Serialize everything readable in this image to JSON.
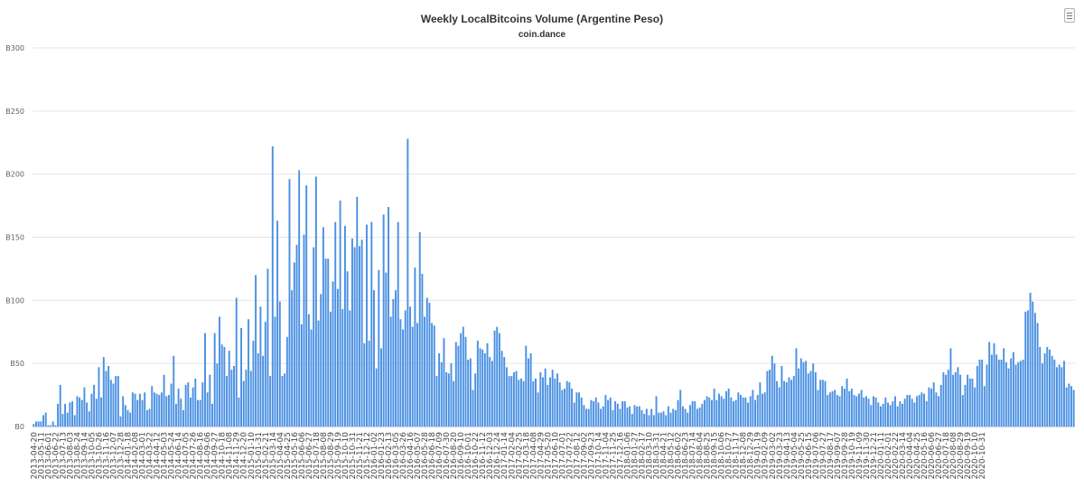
{
  "chart_data": {
    "type": "bar",
    "title": "Weekly LocalBitcoins Volume (Argentine Peso)",
    "subtitle": "coin.dance",
    "xlabel": "",
    "ylabel": "",
    "ylim": [
      0,
      300
    ],
    "y_ticks": [
      "B0",
      "B50",
      "B100",
      "B150",
      "B200",
      "B250",
      "B300"
    ],
    "y_tick_values": [
      0,
      50,
      100,
      150,
      200,
      250,
      300
    ],
    "x_tick_labels": [
      "2013-04-20",
      "2013-05-11",
      "2013-06-01",
      "2013-06-22",
      "2013-07-13",
      "2013-08-03",
      "2013-08-24",
      "2013-09-14",
      "2013-10-05",
      "2013-10-26",
      "2013-11-16",
      "2013-12-07",
      "2013-12-28",
      "2014-01-18",
      "2014-02-08",
      "2014-03-01",
      "2014-03-22",
      "2014-04-12",
      "2014-05-03",
      "2014-05-24",
      "2014-06-14",
      "2014-07-05",
      "2014-07-26",
      "2014-08-16",
      "2014-09-06",
      "2014-09-27",
      "2014-10-18",
      "2014-11-08",
      "2014-11-29",
      "2014-12-20",
      "2015-01-10",
      "2015-01-31",
      "2015-02-21",
      "2015-03-14",
      "2015-04-04",
      "2015-04-25",
      "2015-05-16",
      "2015-06-06",
      "2015-06-27",
      "2015-07-18",
      "2015-08-08",
      "2015-08-29",
      "2015-09-19",
      "2015-10-10",
      "2015-10-31",
      "2015-11-21",
      "2015-12-12",
      "2016-01-02",
      "2016-01-23",
      "2016-02-13",
      "2016-03-05",
      "2016-03-26",
      "2016-04-16",
      "2016-05-07",
      "2016-05-28",
      "2016-06-18",
      "2016-07-09",
      "2016-07-30",
      "2016-08-20",
      "2016-09-10",
      "2016-10-01",
      "2016-10-22",
      "2016-11-12",
      "2016-12-03",
      "2016-12-24",
      "2017-01-14",
      "2017-02-04",
      "2017-02-25",
      "2017-03-18",
      "2017-04-08",
      "2017-04-29",
      "2017-05-20",
      "2017-06-10",
      "2017-07-01",
      "2017-07-22",
      "2017-08-12",
      "2017-09-02",
      "2017-09-23",
      "2017-10-14",
      "2017-11-04",
      "2017-11-25",
      "2017-12-16",
      "2018-01-06",
      "2018-01-27",
      "2018-02-17",
      "2018-03-10",
      "2018-03-31",
      "2018-04-21",
      "2018-05-12",
      "2018-06-02",
      "2018-06-23",
      "2018-07-14",
      "2018-08-04",
      "2018-08-25",
      "2018-09-15",
      "2018-10-06",
      "2018-10-27",
      "2018-11-17",
      "2018-12-08",
      "2018-12-29",
      "2019-01-19",
      "2019-02-09",
      "2019-03-02",
      "2019-03-23",
      "2019-04-13",
      "2019-05-04",
      "2019-05-25",
      "2019-06-15",
      "2019-07-06",
      "2019-07-27",
      "2019-08-17",
      "2019-09-07",
      "2019-09-28",
      "2019-10-19",
      "2019-11-09",
      "2019-11-30",
      "2019-12-21",
      "2020-01-11",
      "2020-02-01",
      "2020-02-22",
      "2020-03-14",
      "2020-04-04",
      "2020-04-25",
      "2020-05-16",
      "2020-06-06",
      "2020-06-27",
      "2020-07-18",
      "2020-08-08",
      "2020-08-29",
      "2020-09-19",
      "2020-10-10",
      "2020-10-31"
    ],
    "x_start": "2013-04-20",
    "x_end": "2020-11-14",
    "week_step_days": 7,
    "grid": true,
    "legend": "none",
    "series": [
      {
        "color": "#4a90e2",
        "values": [
          2,
          4,
          4,
          4,
          9,
          11,
          1,
          1,
          4,
          1,
          18,
          33,
          10,
          18,
          11,
          19,
          20,
          9,
          24,
          23,
          21,
          31,
          19,
          12,
          26,
          33,
          22,
          47,
          23,
          55,
          44,
          48,
          37,
          34,
          40,
          40,
          8,
          24,
          17,
          13,
          11,
          27,
          26,
          21,
          26,
          21,
          27,
          13,
          14,
          32,
          27,
          26,
          25,
          27,
          41,
          24,
          25,
          34,
          56,
          18,
          30,
          22,
          13,
          33,
          35,
          23,
          31,
          38,
          21,
          21,
          35,
          74,
          27,
          41,
          18,
          74,
          50,
          87,
          65,
          63,
          40,
          60,
          45,
          48,
          102,
          23,
          78,
          36,
          45,
          85,
          44,
          68,
          120,
          58,
          95,
          56,
          83,
          125,
          40,
          222,
          87,
          163,
          99,
          40,
          42,
          71,
          196,
          108,
          130,
          144,
          203,
          81,
          152,
          191,
          89,
          77,
          142,
          198,
          84,
          105,
          158,
          133,
          133,
          91,
          115,
          162,
          109,
          179,
          93,
          159,
          123,
          92,
          149,
          142,
          182,
          143,
          148,
          66,
          160,
          68,
          162,
          108,
          46,
          124,
          62,
          168,
          122,
          174,
          87,
          101,
          108,
          162,
          85,
          77,
          92,
          228,
          95,
          79,
          126,
          82,
          154,
          121,
          87,
          102,
          98,
          82,
          80,
          40,
          58,
          51,
          70,
          43,
          42,
          50,
          36,
          67,
          64,
          74,
          79,
          71,
          53,
          54,
          29,
          42,
          68,
          62,
          61,
          58,
          66,
          55,
          52,
          76,
          79,
          74,
          60,
          55,
          47,
          40,
          40,
          43,
          44,
          37,
          38,
          36,
          64,
          54,
          58,
          36,
          38,
          27,
          43,
          39,
          46,
          33,
          39,
          45,
          38,
          42,
          35,
          29,
          30,
          36,
          35,
          30,
          19,
          27,
          27,
          23,
          17,
          14,
          14,
          21,
          20,
          23,
          19,
          14,
          16,
          25,
          21,
          23,
          13,
          20,
          18,
          14,
          20,
          20,
          15,
          16,
          10,
          17,
          16,
          16,
          13,
          10,
          14,
          9,
          14,
          9,
          24,
          11,
          11,
          12,
          9,
          16,
          11,
          14,
          13,
          21,
          29,
          16,
          14,
          11,
          17,
          20,
          20,
          14,
          15,
          18,
          21,
          24,
          23,
          21,
          30,
          21,
          26,
          24,
          22,
          28,
          30,
          23,
          20,
          21,
          27,
          25,
          23,
          23,
          19,
          24,
          29,
          21,
          25,
          35,
          26,
          27,
          44,
          45,
          56,
          50,
          36,
          31,
          48,
          36,
          35,
          39,
          37,
          40,
          62,
          46,
          54,
          51,
          52,
          42,
          44,
          50,
          43,
          29,
          37,
          37,
          36,
          25,
          27,
          28,
          29,
          25,
          24,
          32,
          30,
          38,
          28,
          30,
          25,
          24,
          26,
          29,
          23,
          24,
          22,
          17,
          24,
          23,
          19,
          16,
          18,
          23,
          19,
          17,
          20,
          24,
          16,
          20,
          18,
          22,
          25,
          25,
          22,
          19,
          24,
          25,
          27,
          26,
          20,
          31,
          30,
          35,
          27,
          24,
          33,
          43,
          41,
          45,
          62,
          41,
          43,
          47,
          41,
          25,
          33,
          41,
          38,
          38,
          31,
          48,
          53,
          53,
          32,
          49,
          67,
          57,
          66,
          57,
          53,
          53,
          62,
          51,
          46,
          54,
          59,
          49,
          51,
          52,
          53,
          91,
          92,
          106,
          99,
          90,
          82,
          63,
          50,
          58,
          63,
          61,
          56,
          53,
          47,
          49,
          47,
          52,
          31,
          34,
          32,
          29
        ]
      }
    ]
  }
}
